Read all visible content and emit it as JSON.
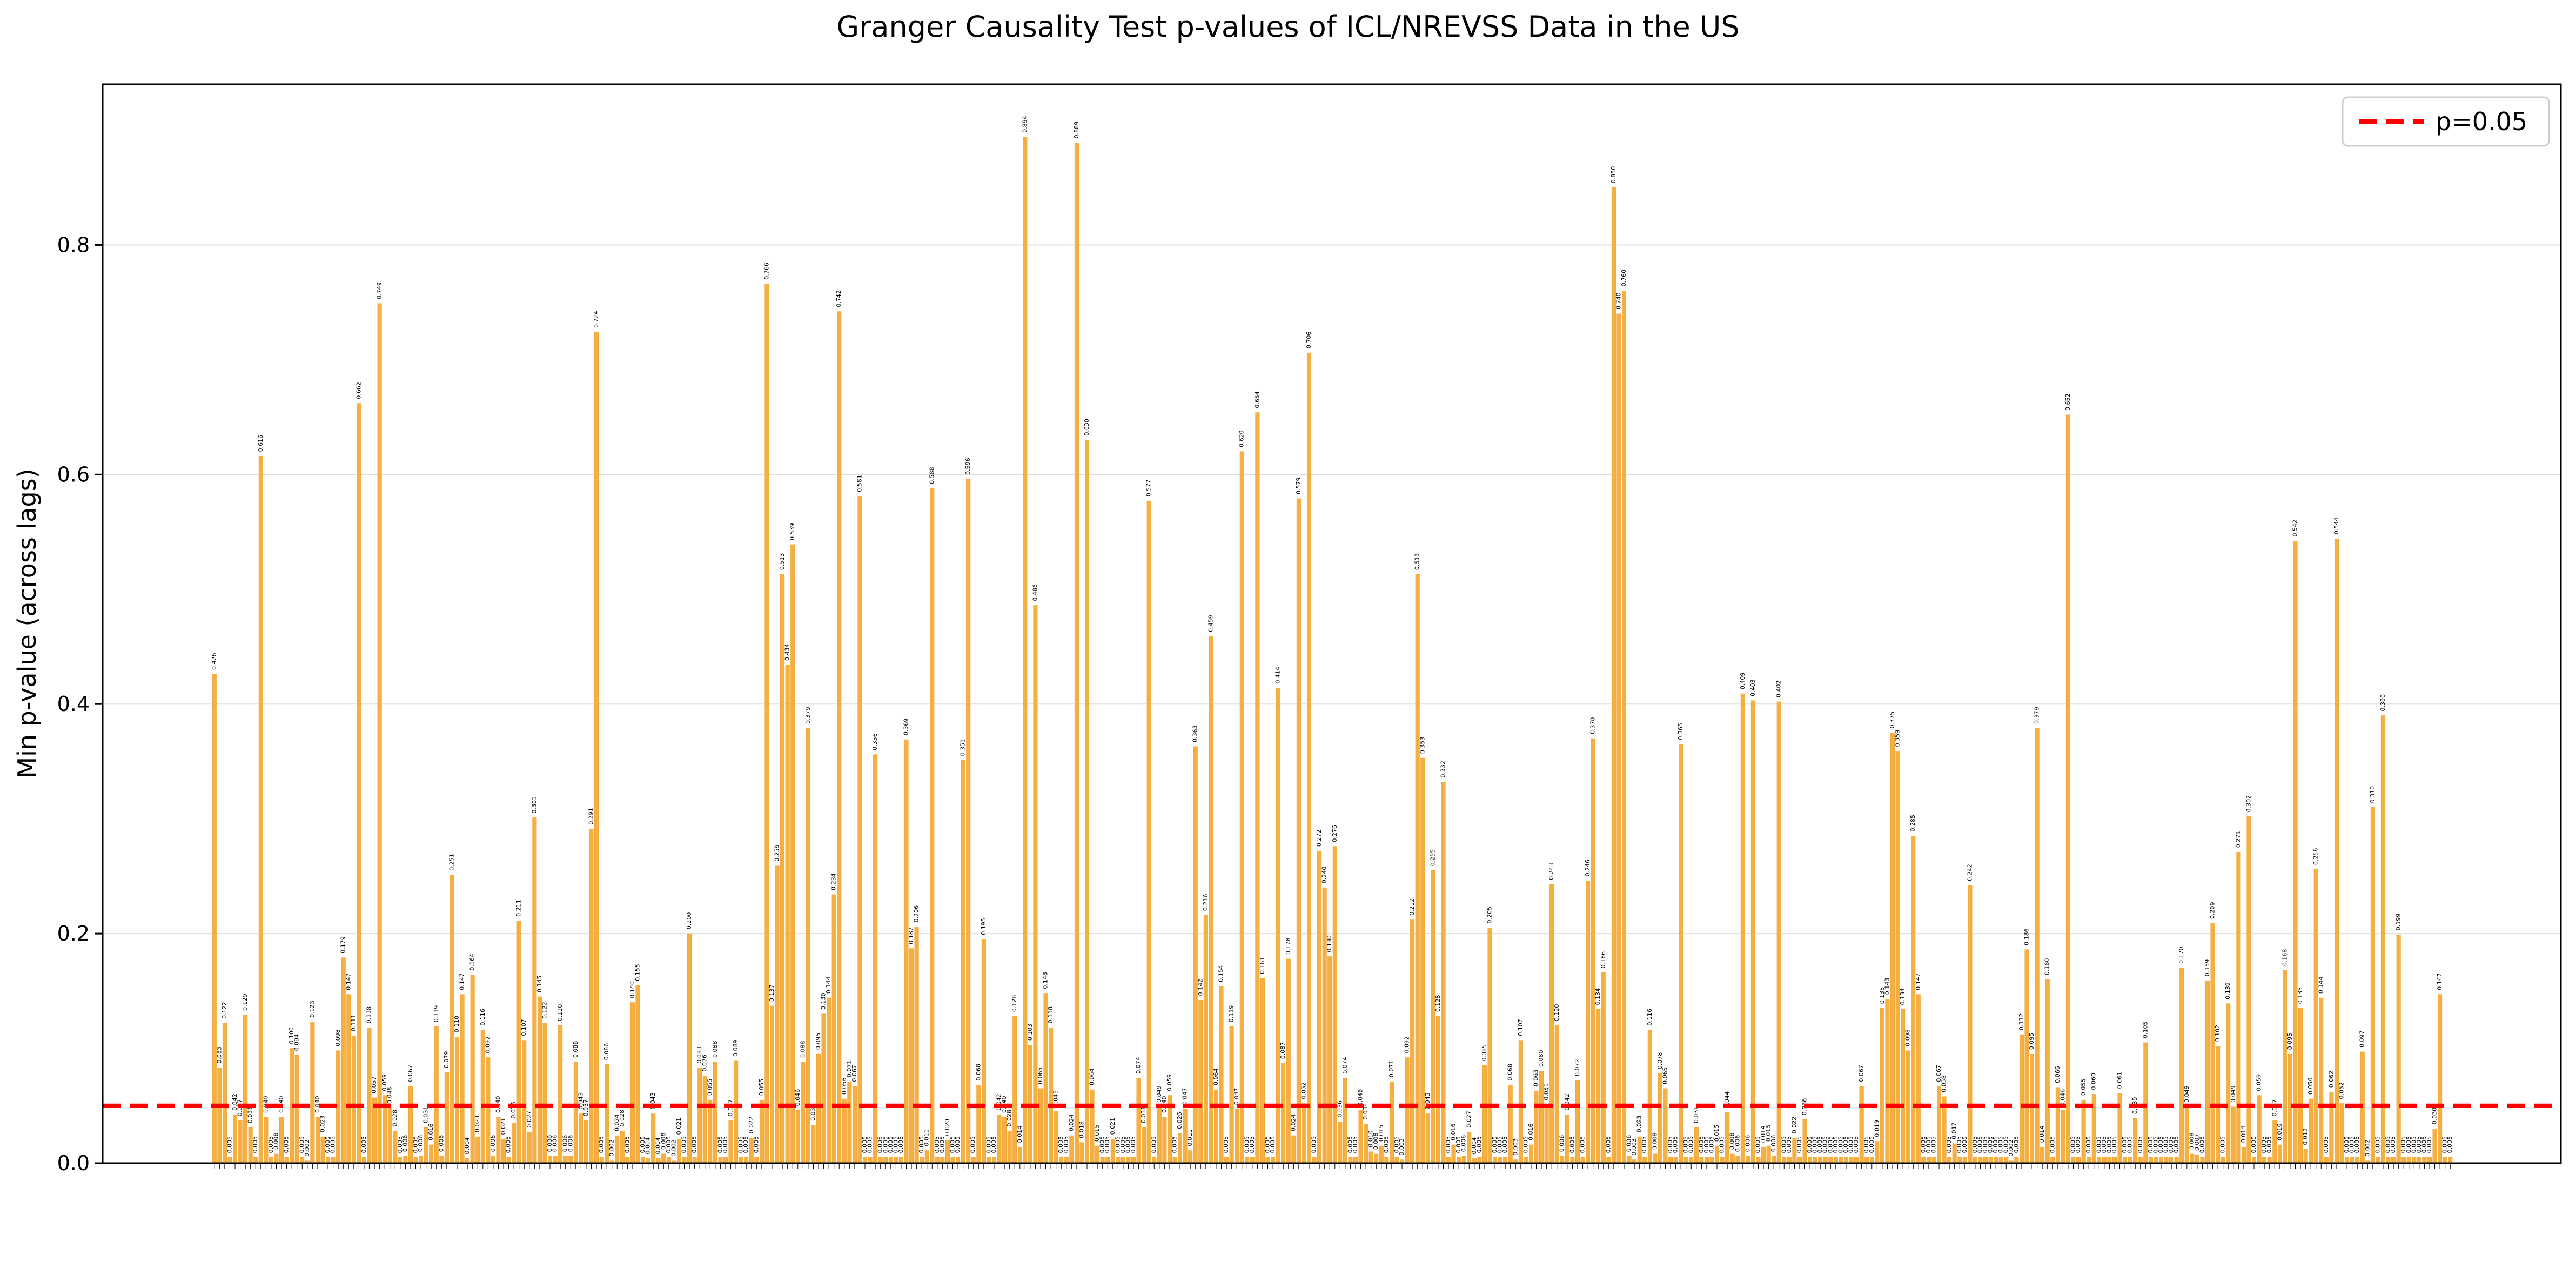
{
  "chart_data": {
    "type": "bar",
    "title": "Granger Causality Test p-values of ICL/NREVSS Data in the US",
    "xlabel": "",
    "ylabel": "Min p-value (across lags)",
    "ylim": [
      0,
      0.94
    ],
    "yticks": [
      0.0,
      0.2,
      0.4,
      0.6,
      0.8
    ],
    "grid": "horizontal",
    "legend_position": "top-right",
    "colors": {
      "bar": "#F5B041",
      "bar_edge": "#F0A030",
      "threshold": "#FF0000",
      "grid": "#DDDDDD"
    },
    "threshold": {
      "value": 0.05,
      "label": "p=0.05"
    },
    "series": [
      {
        "values": [
          0.426,
          0.083,
          0.122,
          0.005,
          0.042,
          0.037,
          0.129,
          0.031,
          0.005,
          0.616,
          0.04,
          0.005,
          0.008,
          0.04,
          0.005,
          0.1,
          0.094,
          0.005,
          0.002,
          0.123,
          0.04,
          0.023,
          0.005,
          0.005,
          0.098,
          0.179,
          0.147,
          0.111,
          0.662,
          0.005,
          0.118,
          0.057,
          0.749,
          0.059,
          0.048,
          0.028,
          0.005,
          0.006,
          0.067,
          0.005,
          0.006,
          0.031,
          0.016,
          0.119,
          0.006,
          0.079,
          0.251,
          0.11,
          0.147,
          0.004,
          0.164,
          0.023,
          0.116,
          0.092,
          0.006,
          0.04,
          0.021,
          0.005,
          0.035,
          0.211,
          0.107,
          0.027,
          0.301,
          0.145,
          0.122,
          0.006,
          0.006,
          0.12,
          0.006,
          0.006,
          0.088,
          0.043,
          0.037,
          0.291,
          0.724,
          0.005,
          0.086,
          0.002,
          0.024,
          0.028,
          0.005,
          0.14,
          0.155,
          0.005,
          0.004,
          0.043,
          0.004,
          0.008,
          0.005,
          0.002,
          0.021,
          0.005,
          0.2,
          0.005,
          0.083,
          0.076,
          0.055,
          0.088,
          0.005,
          0.005,
          0.037,
          0.089,
          0.005,
          0.005,
          0.022,
          0.005,
          0.055,
          0.766,
          0.137,
          0.259,
          0.513,
          0.434,
          0.539,
          0.046,
          0.088,
          0.379,
          0.033,
          0.095,
          0.13,
          0.144,
          0.234,
          0.742,
          0.056,
          0.071,
          0.067,
          0.581,
          0.005,
          0.005,
          0.356,
          0.005,
          0.005,
          0.005,
          0.005,
          0.005,
          0.369,
          0.187,
          0.206,
          0.005,
          0.011,
          0.588,
          0.005,
          0.005,
          0.02,
          0.005,
          0.005,
          0.351,
          0.596,
          0.005,
          0.068,
          0.195,
          0.005,
          0.005,
          0.042,
          0.04,
          0.028,
          0.128,
          0.014,
          0.894,
          0.103,
          0.486,
          0.065,
          0.148,
          0.118,
          0.045,
          0.005,
          0.005,
          0.024,
          0.889,
          0.018,
          0.63,
          0.064,
          0.015,
          0.005,
          0.005,
          0.021,
          0.005,
          0.005,
          0.005,
          0.005,
          0.074,
          0.031,
          0.577,
          0.005,
          0.049,
          0.04,
          0.059,
          0.005,
          0.026,
          0.047,
          0.011,
          0.363,
          0.142,
          0.216,
          0.459,
          0.064,
          0.154,
          0.005,
          0.119,
          0.047,
          0.62,
          0.005,
          0.005,
          0.654,
          0.161,
          0.005,
          0.005,
          0.414,
          0.087,
          0.178,
          0.024,
          0.579,
          0.052,
          0.706,
          0.005,
          0.272,
          0.24,
          0.18,
          0.276,
          0.036,
          0.074,
          0.005,
          0.005,
          0.046,
          0.034,
          0.01,
          0.008,
          0.015,
          0.005,
          0.071,
          0.005,
          0.003,
          0.092,
          0.212,
          0.513,
          0.353,
          0.043,
          0.255,
          0.128,
          0.332,
          0.005,
          0.016,
          0.005,
          0.006,
          0.027,
          0.004,
          0.005,
          0.085,
          0.205,
          0.005,
          0.005,
          0.005,
          0.068,
          0.003,
          0.107,
          0.005,
          0.016,
          0.063,
          0.08,
          0.051,
          0.243,
          0.12,
          0.006,
          0.042,
          0.005,
          0.072,
          0.005,
          0.246,
          0.37,
          0.134,
          0.166,
          0.005,
          0.85,
          0.74,
          0.76,
          0.006,
          0.003,
          0.023,
          0.005,
          0.116,
          0.008,
          0.078,
          0.065,
          0.005,
          0.005,
          0.365,
          0.005,
          0.005,
          0.031,
          0.005,
          0.005,
          0.005,
          0.015,
          0.005,
          0.044,
          0.008,
          0.006,
          0.409,
          0.006,
          0.403,
          0.005,
          0.014,
          0.015,
          0.006,
          0.402,
          0.005,
          0.005,
          0.022,
          0.005,
          0.038,
          0.005,
          0.005,
          0.005,
          0.005,
          0.005,
          0.005,
          0.005,
          0.005,
          0.005,
          0.005,
          0.067,
          0.005,
          0.005,
          0.019,
          0.135,
          0.143,
          0.375,
          0.359,
          0.134,
          0.098,
          0.285,
          0.147,
          0.005,
          0.005,
          0.005,
          0.067,
          0.058,
          0.005,
          0.017,
          0.005,
          0.005,
          0.242,
          0.005,
          0.005,
          0.005,
          0.005,
          0.005,
          0.005,
          0.005,
          0.002,
          0.005,
          0.112,
          0.186,
          0.095,
          0.379,
          0.014,
          0.16,
          0.005,
          0.066,
          0.046,
          0.652,
          0.005,
          0.005,
          0.055,
          0.005,
          0.06,
          0.005,
          0.005,
          0.005,
          0.005,
          0.061,
          0.005,
          0.005,
          0.039,
          0.005,
          0.105,
          0.005,
          0.005,
          0.005,
          0.005,
          0.005,
          0.005,
          0.17,
          0.049,
          0.008,
          0.007,
          0.005,
          0.159,
          0.209,
          0.102,
          0.005,
          0.139,
          0.049,
          0.271,
          0.014,
          0.302,
          0.005,
          0.059,
          0.005,
          0.005,
          0.037,
          0.016,
          0.168,
          0.095,
          0.542,
          0.135,
          0.012,
          0.056,
          0.256,
          0.144,
          0.005,
          0.062,
          0.544,
          0.052,
          0.005,
          0.005,
          0.005,
          0.097,
          0.002,
          0.31,
          0.005,
          0.39,
          0.005,
          0.005,
          0.199,
          0.005,
          0.005,
          0.005,
          0.005,
          0.005,
          0.005,
          0.03,
          0.147,
          0.005,
          0.005
        ]
      }
    ]
  }
}
